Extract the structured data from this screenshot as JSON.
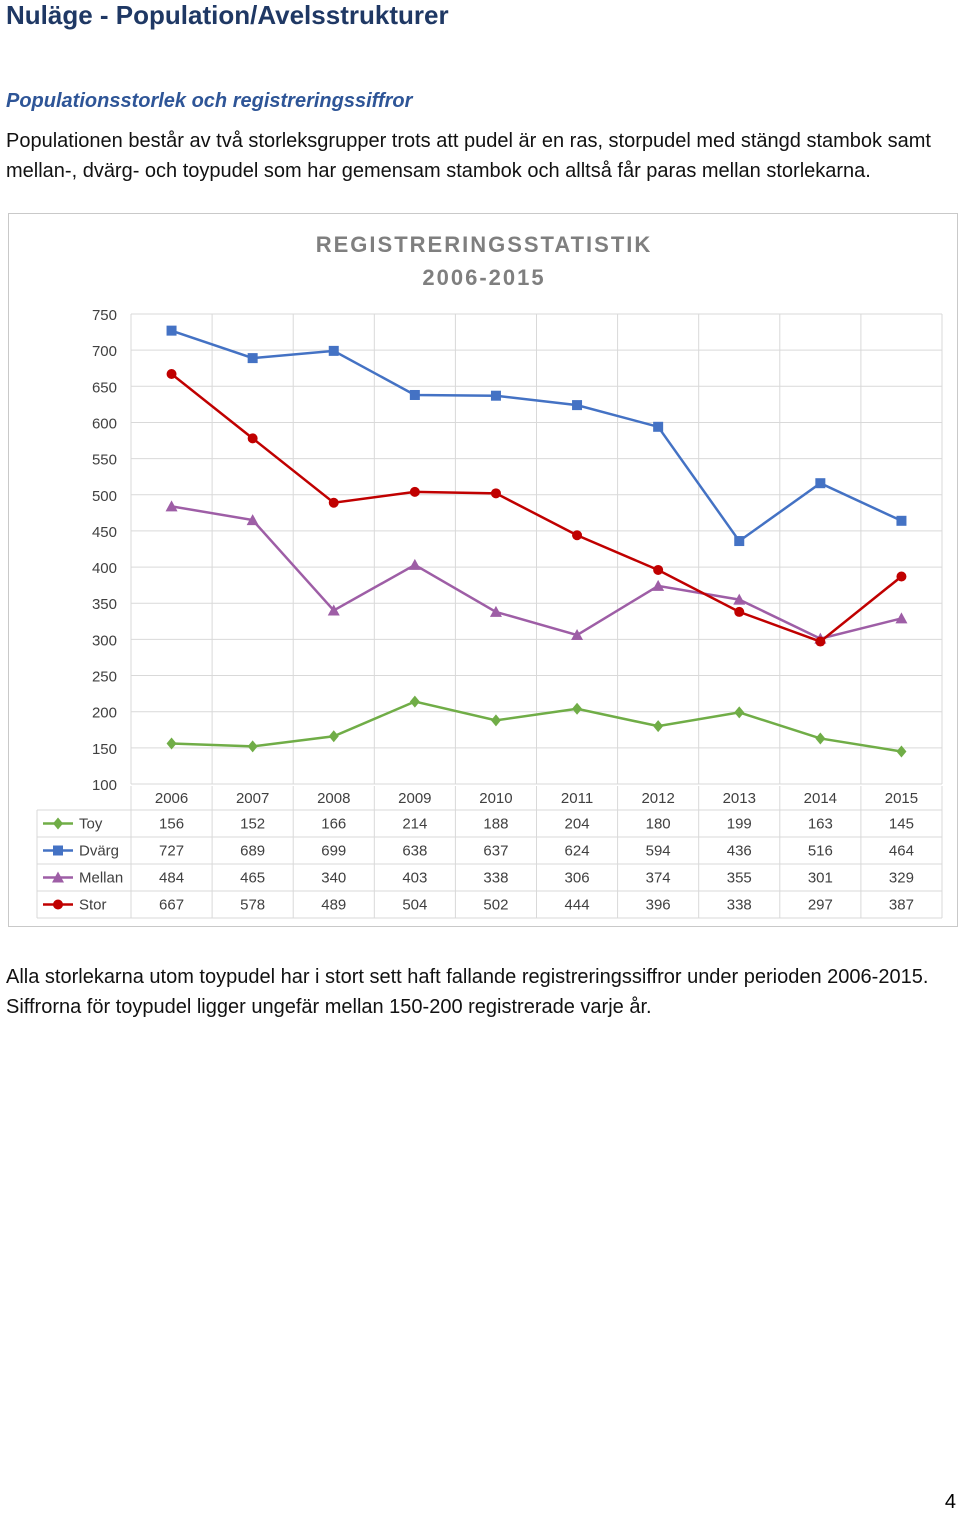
{
  "page": {
    "title": "Nuläge - Population/Avelsstrukturer",
    "section_heading": "Populationsstorlek och registreringssiffror",
    "paragraph_1": "Populationen består av två storleksgrupper trots att pudel är en ras, storpudel med stängd stambok samt mellan-, dvärg- och toypudel som har gemensam stambok och alltså får paras mellan storlekarna.",
    "paragraph_2": "Alla storlekarna utom toypudel har i stort sett haft fallande registreringssiffror under perioden 2006-2015. Siffrorna för toypudel ligger ungefär mellan 150-200 registrerade varje år.",
    "page_number": "4"
  },
  "chart_data": {
    "type": "line",
    "title": "REGISTRERINGSSTATISTIK",
    "subtitle": "2006-2015",
    "xlabel": "",
    "ylabel": "",
    "ylim": [
      100,
      750
    ],
    "y_ticks": [
      "750",
      "700",
      "650",
      "600",
      "550",
      "500",
      "450",
      "400",
      "350",
      "300",
      "250",
      "200",
      "150",
      "100"
    ],
    "grid": true,
    "legend": "data-table-below",
    "categories": [
      "2006",
      "2007",
      "2008",
      "2009",
      "2010",
      "2011",
      "2012",
      "2013",
      "2014",
      "2015"
    ],
    "series": [
      {
        "name": "Toy",
        "color": "#70ad47",
        "marker": "diamond",
        "values": [
          156,
          152,
          166,
          214,
          188,
          204,
          180,
          199,
          163,
          145
        ]
      },
      {
        "name": "Dvärg",
        "color": "#4472c4",
        "marker": "square",
        "values": [
          727,
          689,
          699,
          638,
          637,
          624,
          594,
          436,
          516,
          464
        ]
      },
      {
        "name": "Mellan",
        "color": "#9e5ea6",
        "marker": "triangle",
        "values": [
          484,
          465,
          340,
          403,
          338,
          306,
          374,
          355,
          301,
          329
        ]
      },
      {
        "name": "Stor",
        "color": "#c00000",
        "marker": "circle",
        "values": [
          667,
          578,
          489,
          504,
          502,
          444,
          396,
          338,
          297,
          387
        ]
      }
    ]
  }
}
